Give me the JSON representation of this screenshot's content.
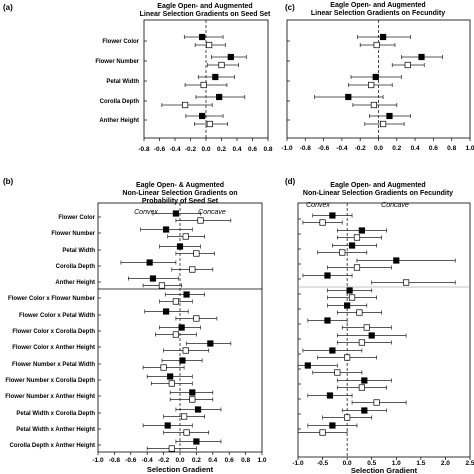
{
  "chart_data": [
    {
      "type": "scatter",
      "panel_label": "(a)",
      "title": [
        "Eagle Open- and Augmented",
        "Linear Selection Gradients on Seed Set"
      ],
      "xlabel": "",
      "xlim": [
        -0.8,
        0.8
      ],
      "xticks": [
        "-0.8",
        "-0.6",
        "-0.4",
        "-0.2",
        "0.0",
        "0.2",
        "0.4",
        "0.6",
        "0.8"
      ],
      "rows": [
        "Flower Color",
        "Flower Number",
        "Petal Width",
        "Corolla Depth",
        "Anther Height"
      ],
      "series": [
        {
          "marker": "filled",
          "values": [
            -0.05,
            0.32,
            0.12,
            0.17,
            -0.05
          ],
          "ci_low": [
            -0.28,
            0.07,
            -0.1,
            -0.13,
            -0.26
          ],
          "ci_high": [
            0.22,
            0.52,
            0.37,
            0.5,
            0.22
          ]
        },
        {
          "marker": "open",
          "values": [
            0.04,
            0.2,
            -0.03,
            -0.27,
            0.05
          ],
          "ci_low": [
            -0.14,
            0.02,
            -0.27,
            -0.57,
            -0.15
          ],
          "ci_high": [
            0.25,
            0.42,
            0.27,
            0.08,
            0.28
          ]
        }
      ]
    },
    {
      "type": "scatter",
      "panel_label": "(c)",
      "title": [
        "Eagle Open- and Augmented",
        "Linear Selection Gradients on Fecundity"
      ],
      "xlabel": "",
      "xlim": [
        -1.0,
        1.0
      ],
      "xticks": [
        "-1.0",
        "-0.8",
        "-0.6",
        "-0.4",
        "-0.2",
        "0.0",
        "0.2",
        "0.4",
        "0.6",
        "0.8",
        "1.0"
      ],
      "rows": [
        "",
        "",
        "",
        "",
        ""
      ],
      "series": [
        {
          "marker": "filled",
          "values": [
            0.05,
            0.47,
            -0.03,
            -0.33,
            0.12
          ],
          "ci_low": [
            -0.23,
            0.25,
            -0.3,
            -0.7,
            -0.1
          ],
          "ci_high": [
            0.35,
            0.7,
            0.25,
            0.05,
            0.35
          ]
        },
        {
          "marker": "open",
          "values": [
            -0.02,
            0.32,
            -0.08,
            -0.05,
            0.05
          ],
          "ci_low": [
            -0.2,
            0.15,
            -0.33,
            -0.28,
            -0.15
          ],
          "ci_high": [
            0.18,
            0.5,
            0.15,
            0.2,
            0.28
          ]
        }
      ]
    },
    {
      "type": "scatter",
      "panel_label": "(b)",
      "title": [
        "Eagle Open- & Augmented",
        "Non-Linear Selection Gradients on",
        "Probability of Seed Set"
      ],
      "xlabel": "Selection Gradient",
      "xlim": [
        -1.0,
        1.0
      ],
      "xticks": [
        "-1.0",
        "-0.8",
        "-0.6",
        "-0.4",
        "-0.2",
        "0.0",
        "0.2",
        "0.4",
        "0.6",
        "0.8",
        "1.0"
      ],
      "annotations": [
        "Convex",
        "Concave"
      ],
      "rows": [
        "Flower Color",
        "Flower Number",
        "Petal Width",
        "Corolla Depth",
        "Anther Height",
        "Flower Color x Flower Number",
        "Flower Color x Petal Width",
        "Flower Color x Corolla Depth",
        "Flower Color x Anther Height",
        "Flower Number x Petal Width",
        "Flower Number x Corolla Depth",
        "Flower Number x Anther Height",
        "Petal Width x Corolla Depth",
        "Petal Width x Anther Height",
        "Corolla Depth x Anther Height"
      ],
      "series": [
        {
          "marker": "filled",
          "values": [
            -0.05,
            -0.17,
            0.0,
            -0.37,
            -0.33,
            0.08,
            -0.17,
            0.02,
            0.37,
            0.03,
            -0.12,
            0.15,
            0.22,
            -0.15,
            0.2
          ],
          "ci_low": [
            -0.33,
            -0.48,
            -0.25,
            -0.72,
            -0.63,
            -0.18,
            -0.43,
            -0.25,
            0.08,
            -0.22,
            -0.4,
            -0.12,
            -0.05,
            -0.45,
            -0.05
          ],
          "ci_high": [
            0.25,
            0.15,
            0.25,
            -0.05,
            -0.02,
            0.3,
            0.1,
            0.25,
            0.62,
            0.27,
            0.15,
            0.4,
            0.5,
            0.15,
            0.5
          ]
        },
        {
          "marker": "open",
          "values": [
            0.25,
            0.07,
            0.2,
            0.15,
            -0.22,
            -0.05,
            0.2,
            -0.05,
            0.07,
            -0.2,
            -0.1,
            0.15,
            0.05,
            0.08,
            -0.1
          ],
          "ci_low": [
            -0.05,
            -0.15,
            -0.05,
            -0.1,
            -0.45,
            -0.25,
            -0.05,
            -0.3,
            -0.2,
            -0.45,
            -0.35,
            -0.12,
            -0.2,
            -0.2,
            -0.4
          ],
          "ci_high": [
            0.62,
            0.3,
            0.42,
            0.4,
            0.02,
            0.15,
            0.45,
            0.2,
            0.35,
            0.05,
            0.15,
            0.4,
            0.3,
            0.35,
            0.2
          ]
        }
      ]
    },
    {
      "type": "scatter",
      "panel_label": "(d)",
      "title": [
        "Eagle Open- and Augmented",
        "Non-Linear Selection Gradients on Fecundity"
      ],
      "xlabel": "Selection Gradient",
      "xlim": [
        -1.0,
        2.5
      ],
      "xticks": [
        "-1.0",
        "-0.5",
        "0.0",
        "0.5",
        "1.0",
        "1.5",
        "2.0",
        "2.5"
      ],
      "annotations": [
        "Convex",
        "Concave"
      ],
      "rows": [
        "",
        "",
        "",
        "",
        "",
        "",
        "",
        "",
        "",
        "",
        "",
        "",
        "",
        "",
        ""
      ],
      "series": [
        {
          "marker": "filled",
          "values": [
            -0.3,
            0.3,
            0.1,
            1.0,
            -0.4,
            0.05,
            0.0,
            -0.4,
            0.5,
            -0.3,
            -0.8,
            0.35,
            -0.35,
            0.35,
            -0.3
          ],
          "ci_low": [
            -0.7,
            -0.2,
            -0.3,
            0.2,
            -0.9,
            -0.4,
            -0.4,
            -0.8,
            -0.2,
            -0.9,
            -1.3,
            -0.2,
            -0.8,
            -0.1,
            -0.8
          ],
          "ci_high": [
            0.1,
            0.8,
            0.6,
            2.2,
            0.1,
            0.5,
            0.4,
            0.0,
            1.2,
            0.3,
            -0.2,
            0.9,
            0.1,
            0.8,
            0.2
          ]
        },
        {
          "marker": "open",
          "values": [
            -0.5,
            0.2,
            -0.1,
            0.2,
            1.2,
            0.1,
            0.25,
            0.4,
            0.3,
            0.0,
            -0.2,
            0.3,
            0.6,
            0.0,
            -0.5
          ],
          "ci_low": [
            -0.9,
            -0.2,
            -0.6,
            -0.4,
            0.5,
            -0.4,
            -0.2,
            -0.1,
            -0.2,
            -0.6,
            -0.7,
            -0.2,
            0.1,
            -0.5,
            -1.0
          ],
          "ci_high": [
            -0.1,
            0.7,
            0.4,
            0.9,
            2.2,
            0.6,
            0.7,
            0.9,
            0.9,
            0.6,
            0.3,
            0.8,
            1.2,
            0.5,
            0.0
          ]
        }
      ]
    }
  ]
}
